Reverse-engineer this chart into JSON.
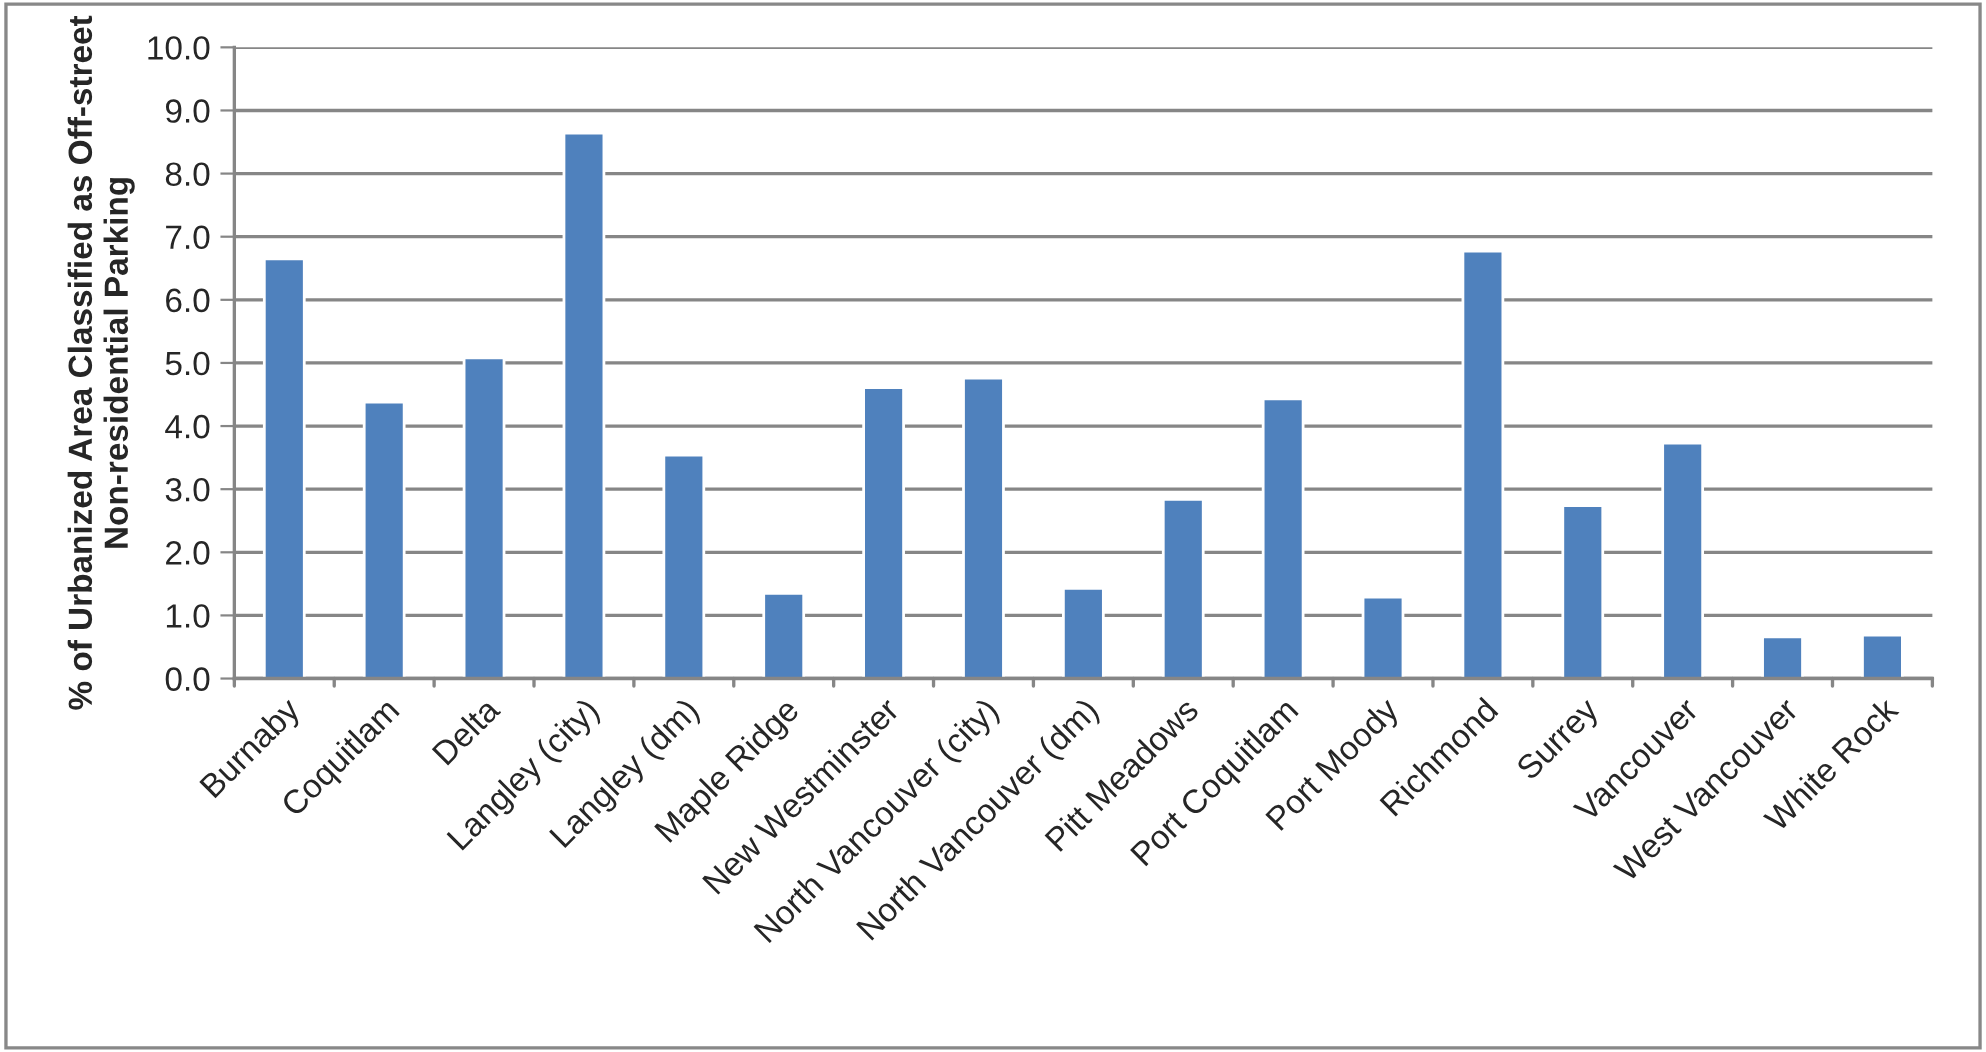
{
  "chart_data": {
    "type": "bar",
    "ylabel": "% of Urbanized Area Classified as Off-street\nNon-residential Parking",
    "categories": [
      "Burnaby",
      "Coquitlam",
      "Delta",
      "Langley (city)",
      "Langley (dm)",
      "Maple Ridge",
      "New Westminster",
      "North Vancouver (city)",
      "North Vancouver (dm)",
      "Pitt Meadows",
      "Port Coquitlam",
      "Port Moody",
      "Richmond",
      "Surrey",
      "Vancouver",
      "West Vancouver",
      "White Rock"
    ],
    "values": [
      6.65,
      4.38,
      5.08,
      8.64,
      3.54,
      1.35,
      4.61,
      4.76,
      1.43,
      2.84,
      4.43,
      1.29,
      6.77,
      2.74,
      3.73,
      0.66,
      0.69
    ],
    "color": "#4f81bd",
    "ylim": [
      0,
      10
    ],
    "yticks": [
      {
        "value": 0,
        "label": "0.0"
      },
      {
        "value": 1,
        "label": "1.0"
      },
      {
        "value": 2,
        "label": "2.0"
      },
      {
        "value": 3,
        "label": "3.0"
      },
      {
        "value": 4,
        "label": "4.0"
      },
      {
        "value": 5,
        "label": "5.0"
      },
      {
        "value": 6,
        "label": "6.0"
      },
      {
        "value": 7,
        "label": "7.0"
      },
      {
        "value": 8,
        "label": "8.0"
      },
      {
        "value": 9,
        "label": "9.0"
      },
      {
        "value": 10,
        "label": "10.0"
      }
    ],
    "grid": "y",
    "legend": false
  }
}
